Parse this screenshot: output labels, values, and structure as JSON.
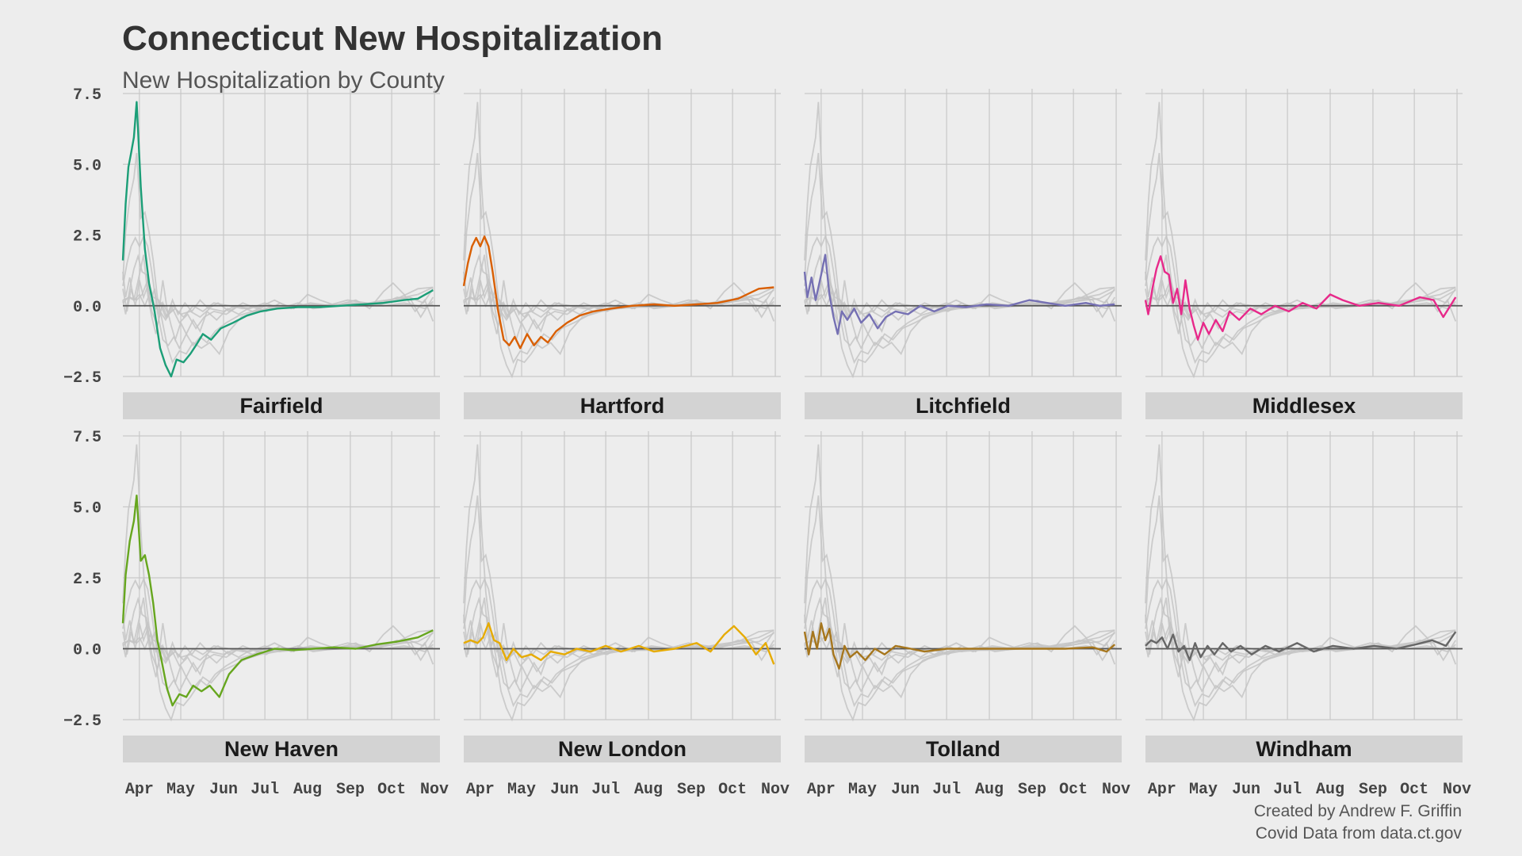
{
  "title": "Connecticut New Hospitalization",
  "subtitle": "New Hospitalization by County",
  "caption": {
    "line1": "Created by Andrew F. Griffin",
    "line2": "Covid Data from data.ct.gov"
  },
  "colors": {
    "background": "#ededed",
    "strip": "#d3d3d3",
    "grid": "#c8c8c8",
    "zero_line": "#555555",
    "ghost": "#c4c4c4"
  },
  "chart_data": {
    "type": "line",
    "facet_layout": "4 columns x 2 rows, facet label strip below each panel",
    "x_axis": {
      "ticks": [
        "Apr",
        "May",
        "Jun",
        "Jul",
        "Aug",
        "Sep",
        "Oct",
        "Nov"
      ],
      "range": [
        "2020-03-20",
        "2020-11-05"
      ]
    },
    "y_axis": {
      "ticks": [
        "7.5",
        "5.0",
        "2.5",
        "0.0",
        "−2.5"
      ],
      "tick_values": [
        7.5,
        5.0,
        2.5,
        0.0,
        -2.5
      ],
      "range": [
        -2.5,
        7.5
      ]
    },
    "grid": true,
    "reference_line": 0,
    "background_series": "all other counties drawn in light grey in every panel",
    "panels": [
      {
        "county": "Fairfield",
        "color": "#1b9e77",
        "points": [
          [
            "2020-03-20",
            1.6
          ],
          [
            "2020-03-22",
            3.6
          ],
          [
            "2020-03-24",
            4.9
          ],
          [
            "2020-03-26",
            5.4
          ],
          [
            "2020-03-28",
            5.95
          ],
          [
            "2020-03-30",
            7.2
          ],
          [
            "2020-04-02",
            4.2
          ],
          [
            "2020-04-05",
            2.0
          ],
          [
            "2020-04-08",
            0.8
          ],
          [
            "2020-04-12",
            -0.2
          ],
          [
            "2020-04-16",
            -1.5
          ],
          [
            "2020-04-20",
            -2.1
          ],
          [
            "2020-04-24",
            -2.5
          ],
          [
            "2020-04-28",
            -1.9
          ],
          [
            "2020-05-03",
            -2.0
          ],
          [
            "2020-05-08",
            -1.7
          ],
          [
            "2020-05-12",
            -1.4
          ],
          [
            "2020-05-17",
            -1.0
          ],
          [
            "2020-05-23",
            -1.2
          ],
          [
            "2020-05-30",
            -0.8
          ],
          [
            "2020-06-08",
            -0.6
          ],
          [
            "2020-06-18",
            -0.35
          ],
          [
            "2020-06-28",
            -0.2
          ],
          [
            "2020-07-10",
            -0.1
          ],
          [
            "2020-07-25",
            -0.05
          ],
          [
            "2020-08-10",
            -0.05
          ],
          [
            "2020-08-25",
            0.0
          ],
          [
            "2020-09-10",
            0.05
          ],
          [
            "2020-09-25",
            0.1
          ],
          [
            "2020-10-10",
            0.2
          ],
          [
            "2020-10-20",
            0.25
          ],
          [
            "2020-10-31",
            0.55
          ]
        ]
      },
      {
        "county": "Hartford",
        "color": "#d95f02",
        "points": [
          [
            "2020-03-20",
            0.7
          ],
          [
            "2020-03-23",
            1.5
          ],
          [
            "2020-03-26",
            2.1
          ],
          [
            "2020-03-29",
            2.4
          ],
          [
            "2020-04-01",
            2.1
          ],
          [
            "2020-04-04",
            2.45
          ],
          [
            "2020-04-07",
            2.1
          ],
          [
            "2020-04-10",
            1.2
          ],
          [
            "2020-04-14",
            -0.2
          ],
          [
            "2020-04-18",
            -1.2
          ],
          [
            "2020-04-22",
            -1.4
          ],
          [
            "2020-04-26",
            -1.1
          ],
          [
            "2020-04-30",
            -1.5
          ],
          [
            "2020-05-05",
            -1.0
          ],
          [
            "2020-05-10",
            -1.4
          ],
          [
            "2020-05-15",
            -1.1
          ],
          [
            "2020-05-20",
            -1.3
          ],
          [
            "2020-05-26",
            -0.9
          ],
          [
            "2020-06-03",
            -0.6
          ],
          [
            "2020-06-12",
            -0.35
          ],
          [
            "2020-06-22",
            -0.2
          ],
          [
            "2020-07-05",
            -0.1
          ],
          [
            "2020-07-20",
            0.0
          ],
          [
            "2020-08-05",
            0.05
          ],
          [
            "2020-08-20",
            0.0
          ],
          [
            "2020-09-05",
            0.05
          ],
          [
            "2020-09-20",
            0.1
          ],
          [
            "2020-10-05",
            0.25
          ],
          [
            "2020-10-20",
            0.6
          ],
          [
            "2020-10-31",
            0.65
          ]
        ]
      },
      {
        "county": "Litchfield",
        "color": "#7570b3",
        "points": [
          [
            "2020-03-20",
            1.2
          ],
          [
            "2020-03-22",
            0.3
          ],
          [
            "2020-03-25",
            1.0
          ],
          [
            "2020-03-28",
            0.2
          ],
          [
            "2020-04-01",
            1.1
          ],
          [
            "2020-04-04",
            1.8
          ],
          [
            "2020-04-07",
            0.4
          ],
          [
            "2020-04-10",
            -0.4
          ],
          [
            "2020-04-13",
            -1.0
          ],
          [
            "2020-04-16",
            -0.2
          ],
          [
            "2020-04-20",
            -0.5
          ],
          [
            "2020-04-25",
            -0.1
          ],
          [
            "2020-04-30",
            -0.6
          ],
          [
            "2020-05-06",
            -0.3
          ],
          [
            "2020-05-12",
            -0.8
          ],
          [
            "2020-05-18",
            -0.4
          ],
          [
            "2020-05-25",
            -0.2
          ],
          [
            "2020-06-03",
            -0.3
          ],
          [
            "2020-06-12",
            0.0
          ],
          [
            "2020-06-22",
            -0.2
          ],
          [
            "2020-07-02",
            0.0
          ],
          [
            "2020-07-15",
            -0.05
          ],
          [
            "2020-07-30",
            0.05
          ],
          [
            "2020-08-15",
            0.0
          ],
          [
            "2020-08-30",
            0.2
          ],
          [
            "2020-09-12",
            0.1
          ],
          [
            "2020-09-25",
            0.0
          ],
          [
            "2020-10-10",
            0.1
          ],
          [
            "2020-10-20",
            0.0
          ],
          [
            "2020-10-31",
            0.05
          ]
        ]
      },
      {
        "county": "Middlesex",
        "color": "#e7298a",
        "points": [
          [
            "2020-03-20",
            0.2
          ],
          [
            "2020-03-22",
            -0.3
          ],
          [
            "2020-03-25",
            0.6
          ],
          [
            "2020-03-28",
            1.3
          ],
          [
            "2020-03-31",
            1.75
          ],
          [
            "2020-04-03",
            1.2
          ],
          [
            "2020-04-06",
            1.1
          ],
          [
            "2020-04-09",
            0.1
          ],
          [
            "2020-04-12",
            0.6
          ],
          [
            "2020-04-15",
            -0.3
          ],
          [
            "2020-04-18",
            0.9
          ],
          [
            "2020-04-21",
            -0.1
          ],
          [
            "2020-04-24",
            -0.7
          ],
          [
            "2020-04-27",
            -1.2
          ],
          [
            "2020-05-01",
            -0.6
          ],
          [
            "2020-05-05",
            -1.0
          ],
          [
            "2020-05-10",
            -0.5
          ],
          [
            "2020-05-15",
            -0.9
          ],
          [
            "2020-05-20",
            -0.2
          ],
          [
            "2020-05-27",
            -0.5
          ],
          [
            "2020-06-04",
            -0.1
          ],
          [
            "2020-06-12",
            -0.3
          ],
          [
            "2020-06-22",
            0.0
          ],
          [
            "2020-07-02",
            -0.2
          ],
          [
            "2020-07-12",
            0.1
          ],
          [
            "2020-07-22",
            -0.1
          ],
          [
            "2020-08-01",
            0.4
          ],
          [
            "2020-08-10",
            0.2
          ],
          [
            "2020-08-22",
            0.0
          ],
          [
            "2020-09-05",
            0.1
          ],
          [
            "2020-09-20",
            0.0
          ],
          [
            "2020-10-05",
            0.3
          ],
          [
            "2020-10-15",
            0.2
          ],
          [
            "2020-10-22",
            -0.4
          ],
          [
            "2020-10-31",
            0.3
          ]
        ]
      },
      {
        "county": "New Haven",
        "color": "#66a61e",
        "points": [
          [
            "2020-03-20",
            0.9
          ],
          [
            "2020-03-22",
            2.6
          ],
          [
            "2020-03-25",
            3.8
          ],
          [
            "2020-03-28",
            4.5
          ],
          [
            "2020-03-30",
            5.4
          ],
          [
            "2020-04-02",
            3.1
          ],
          [
            "2020-04-05",
            3.3
          ],
          [
            "2020-04-08",
            2.6
          ],
          [
            "2020-04-11",
            1.6
          ],
          [
            "2020-04-14",
            0.3
          ],
          [
            "2020-04-17",
            -0.4
          ],
          [
            "2020-04-21",
            -1.4
          ],
          [
            "2020-04-25",
            -2.0
          ],
          [
            "2020-04-30",
            -1.6
          ],
          [
            "2020-05-05",
            -1.7
          ],
          [
            "2020-05-10",
            -1.3
          ],
          [
            "2020-05-16",
            -1.5
          ],
          [
            "2020-05-22",
            -1.3
          ],
          [
            "2020-05-29",
            -1.7
          ],
          [
            "2020-06-05",
            -0.9
          ],
          [
            "2020-06-14",
            -0.4
          ],
          [
            "2020-06-25",
            -0.2
          ],
          [
            "2020-07-08",
            0.0
          ],
          [
            "2020-07-22",
            -0.05
          ],
          [
            "2020-08-05",
            0.0
          ],
          [
            "2020-08-20",
            0.05
          ],
          [
            "2020-09-05",
            0.0
          ],
          [
            "2020-09-20",
            0.15
          ],
          [
            "2020-10-05",
            0.25
          ],
          [
            "2020-10-20",
            0.4
          ],
          [
            "2020-10-31",
            0.65
          ]
        ]
      },
      {
        "county": "New London",
        "color": "#e6ab02",
        "points": [
          [
            "2020-03-20",
            0.2
          ],
          [
            "2020-03-25",
            0.3
          ],
          [
            "2020-03-30",
            0.2
          ],
          [
            "2020-04-03",
            0.4
          ],
          [
            "2020-04-07",
            0.9
          ],
          [
            "2020-04-11",
            0.3
          ],
          [
            "2020-04-15",
            0.2
          ],
          [
            "2020-04-20",
            -0.4
          ],
          [
            "2020-04-25",
            0.0
          ],
          [
            "2020-05-01",
            -0.3
          ],
          [
            "2020-05-08",
            -0.2
          ],
          [
            "2020-05-15",
            -0.4
          ],
          [
            "2020-05-22",
            -0.1
          ],
          [
            "2020-06-01",
            -0.2
          ],
          [
            "2020-06-10",
            0.0
          ],
          [
            "2020-06-20",
            -0.1
          ],
          [
            "2020-07-01",
            0.1
          ],
          [
            "2020-07-12",
            -0.1
          ],
          [
            "2020-07-25",
            0.1
          ],
          [
            "2020-08-05",
            -0.1
          ],
          [
            "2020-08-20",
            0.0
          ],
          [
            "2020-09-05",
            0.2
          ],
          [
            "2020-09-15",
            -0.1
          ],
          [
            "2020-09-25",
            0.5
          ],
          [
            "2020-10-02",
            0.8
          ],
          [
            "2020-10-10",
            0.4
          ],
          [
            "2020-10-18",
            -0.2
          ],
          [
            "2020-10-25",
            0.2
          ],
          [
            "2020-10-31",
            -0.55
          ]
        ]
      },
      {
        "county": "Tolland",
        "color": "#a6761d",
        "points": [
          [
            "2020-03-20",
            0.6
          ],
          [
            "2020-03-23",
            -0.2
          ],
          [
            "2020-03-26",
            0.6
          ],
          [
            "2020-03-29",
            0.0
          ],
          [
            "2020-04-01",
            0.9
          ],
          [
            "2020-04-04",
            0.3
          ],
          [
            "2020-04-07",
            0.7
          ],
          [
            "2020-04-10",
            -0.2
          ],
          [
            "2020-04-14",
            -0.7
          ],
          [
            "2020-04-18",
            0.1
          ],
          [
            "2020-04-22",
            -0.3
          ],
          [
            "2020-04-27",
            -0.1
          ],
          [
            "2020-05-03",
            -0.4
          ],
          [
            "2020-05-10",
            0.0
          ],
          [
            "2020-05-17",
            -0.2
          ],
          [
            "2020-05-25",
            0.1
          ],
          [
            "2020-06-05",
            0.0
          ],
          [
            "2020-06-15",
            -0.1
          ],
          [
            "2020-07-01",
            0.0
          ],
          [
            "2020-07-20",
            0.0
          ],
          [
            "2020-08-10",
            0.0
          ],
          [
            "2020-09-01",
            0.0
          ],
          [
            "2020-09-25",
            0.0
          ],
          [
            "2020-10-15",
            0.05
          ],
          [
            "2020-10-25",
            -0.1
          ],
          [
            "2020-10-31",
            0.15
          ]
        ]
      },
      {
        "county": "Windham",
        "color": "#666666",
        "points": [
          [
            "2020-03-20",
            0.1
          ],
          [
            "2020-03-24",
            0.3
          ],
          [
            "2020-03-28",
            0.2
          ],
          [
            "2020-04-01",
            0.4
          ],
          [
            "2020-04-05",
            0.0
          ],
          [
            "2020-04-09",
            0.5
          ],
          [
            "2020-04-13",
            -0.1
          ],
          [
            "2020-04-17",
            0.1
          ],
          [
            "2020-04-21",
            -0.4
          ],
          [
            "2020-04-25",
            0.2
          ],
          [
            "2020-04-29",
            -0.3
          ],
          [
            "2020-05-04",
            0.1
          ],
          [
            "2020-05-09",
            -0.2
          ],
          [
            "2020-05-15",
            0.2
          ],
          [
            "2020-05-21",
            -0.1
          ],
          [
            "2020-05-28",
            0.1
          ],
          [
            "2020-06-05",
            -0.2
          ],
          [
            "2020-06-15",
            0.1
          ],
          [
            "2020-06-25",
            -0.1
          ],
          [
            "2020-07-08",
            0.2
          ],
          [
            "2020-07-20",
            -0.1
          ],
          [
            "2020-08-03",
            0.1
          ],
          [
            "2020-08-18",
            0.0
          ],
          [
            "2020-09-02",
            0.1
          ],
          [
            "2020-09-18",
            0.0
          ],
          [
            "2020-10-02",
            0.15
          ],
          [
            "2020-10-14",
            0.3
          ],
          [
            "2020-10-24",
            0.1
          ],
          [
            "2020-10-31",
            0.6
          ]
        ]
      }
    ]
  }
}
